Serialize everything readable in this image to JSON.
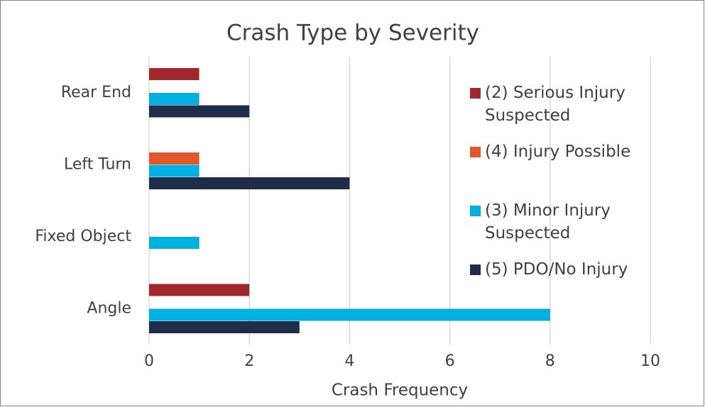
{
  "chart_data": {
    "type": "hbar",
    "title": "Crash Type by Severity",
    "x_label": "Crash Frequency",
    "categories": [
      "Rear End",
      "Left Turn",
      "Fixed Object",
      "Angle"
    ],
    "series": [
      {
        "name": "(2) Serious Injury Suspected",
        "color": "#a0282d",
        "values": [
          1,
          null,
          null,
          2
        ]
      },
      {
        "name": "(4) Injury Possible",
        "color": "#e0582a",
        "values": [
          null,
          1,
          null,
          null
        ]
      },
      {
        "name": "(3) Minor Injury Suspected",
        "color": "#00b0e0",
        "values": [
          1,
          1,
          1,
          8
        ]
      },
      {
        "name": "(5) PDO/No Injury",
        "color": "#1f2d4a",
        "values": [
          2,
          4,
          null,
          3
        ]
      }
    ],
    "xlim": [
      0,
      10
    ],
    "xticks": [
      0,
      2,
      4,
      6,
      8,
      10
    ],
    "grid": true,
    "legend": "right"
  }
}
